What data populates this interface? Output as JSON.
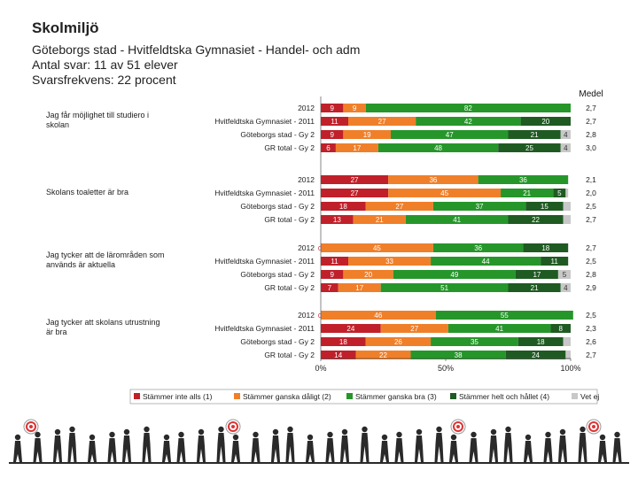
{
  "header": {
    "title": "Skolmiljö",
    "subtitle_lines": [
      "Göteborgs stad - Hvitfeldtska Gymnasiet - Handel- och adm",
      "Antal svar: 11 av 51 elever",
      "Svarsfrekvens: 22 procent"
    ]
  },
  "chart_data": {
    "type": "bar",
    "stacked": "percent",
    "orientation": "horizontal",
    "mean_header": "Medel",
    "x_ticks": [
      "0%",
      "50%",
      "100%"
    ],
    "xlim": [
      0,
      100
    ],
    "series": [
      {
        "name": "Stämmer inte alls (1)",
        "color": "#c0202a"
      },
      {
        "name": "Stämmer ganska dåligt (2)",
        "color": "#f07f2a"
      },
      {
        "name": "Stämmer ganska bra (3)",
        "color": "#26962a"
      },
      {
        "name": "Stämmer helt och hållet (4)",
        "color": "#1f5a22"
      },
      {
        "name": "Vet ej",
        "color": "#c8c8c8"
      }
    ],
    "groups": [
      {
        "question": "Jag får möjlighet till studiero i skolan",
        "rows": [
          {
            "label": "2012",
            "values": [
              9,
              9,
              82,
              0,
              0
            ],
            "mean": "2,7"
          },
          {
            "label": "Hvitfeldtska Gymnasiet - 2011",
            "values": [
              11,
              27,
              42,
              20,
              0
            ],
            "mean": "2,7"
          },
          {
            "label": "Göteborgs stad - Gy 2",
            "values": [
              9,
              19,
              47,
              21,
              4
            ],
            "mean": "2,8"
          },
          {
            "label": "GR total - Gy 2",
            "values": [
              6,
              17,
              48,
              25,
              4
            ],
            "mean": "3,0"
          }
        ]
      },
      {
        "question": "Skolans toaletter är bra",
        "rows": [
          {
            "label": "2012",
            "values": [
              27,
              36,
              36,
              0,
              0
            ],
            "mean": "2,1"
          },
          {
            "label": "Hvitfeldtska Gymnasiet - 2011",
            "values": [
              27,
              45,
              21,
              5,
              1
            ],
            "mean": "2,0"
          },
          {
            "label": "Göteborgs stad - Gy 2",
            "values": [
              18,
              27,
              37,
              15,
              3
            ],
            "mean": "2,5"
          },
          {
            "label": "GR total - Gy 2",
            "values": [
              13,
              21,
              41,
              22,
              3
            ],
            "mean": "2,7"
          }
        ]
      },
      {
        "question": "Jag tycker att de lärområden som används är aktuella",
        "rows": [
          {
            "label": "2012",
            "values": [
              0,
              45,
              36,
              18,
              0
            ],
            "mean": "2,7"
          },
          {
            "label": "Hvitfeldtska Gymnasiet - 2011",
            "values": [
              11,
              33,
              44,
              11,
              0
            ],
            "mean": "2,5"
          },
          {
            "label": "Göteborgs stad - Gy 2",
            "values": [
              9,
              20,
              49,
              17,
              5
            ],
            "mean": "2,8"
          },
          {
            "label": "GR total - Gy 2",
            "values": [
              7,
              17,
              51,
              21,
              4
            ],
            "mean": "2,9"
          }
        ]
      },
      {
        "question": "Jag tycker att skolans utrustning är bra",
        "rows": [
          {
            "label": "2012",
            "values": [
              0,
              46,
              55,
              0,
              0
            ],
            "mean": "2,5"
          },
          {
            "label": "Hvitfeldtska Gymnasiet - 2011",
            "values": [
              24,
              27,
              41,
              8,
              0
            ],
            "mean": "2,3"
          },
          {
            "label": "Göteborgs stad - Gy 2",
            "values": [
              18,
              26,
              35,
              18,
              3
            ],
            "mean": "2,6"
          },
          {
            "label": "GR total - Gy 2",
            "values": [
              14,
              22,
              38,
              24,
              2
            ],
            "mean": "2,7"
          }
        ]
      }
    ]
  }
}
